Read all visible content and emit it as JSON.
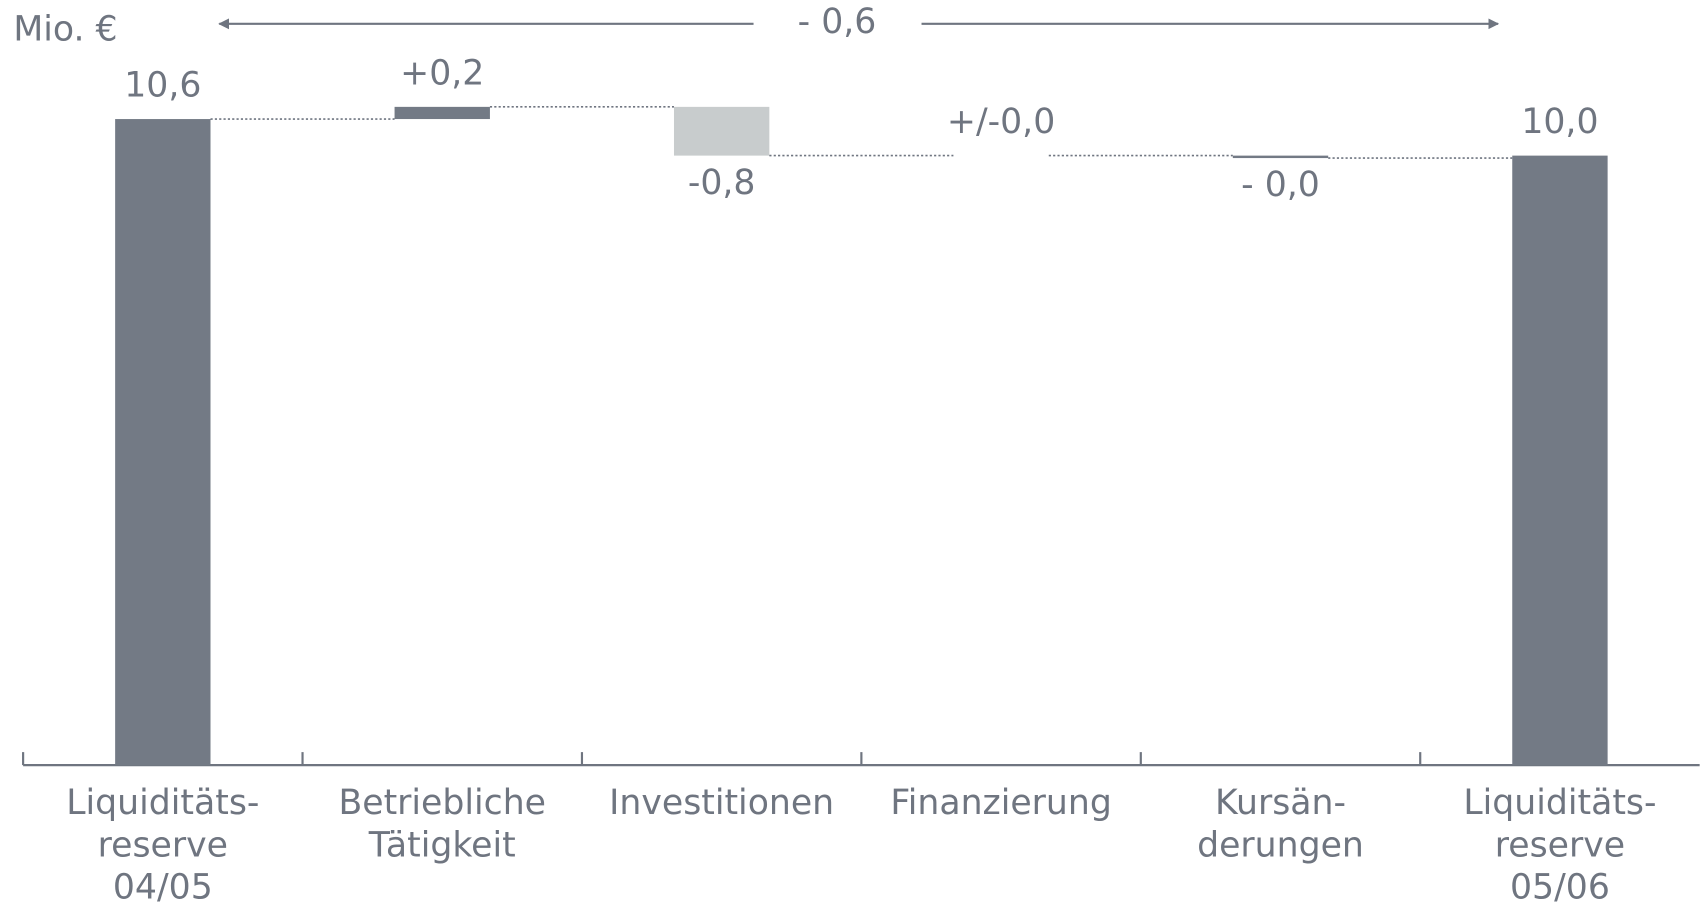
{
  "chart_data": {
    "type": "waterfall",
    "unit_label": "Mio. €",
    "annotation": "- 0,6",
    "categories": [
      [
        "Liquiditäts-",
        "reserve",
        "04/05"
      ],
      [
        "Betriebliche",
        "Tätigkeit"
      ],
      [
        "Investitionen"
      ],
      [
        "Finanzierung"
      ],
      [
        "Kursän-",
        "derungen"
      ],
      [
        "Liquiditäts-",
        "reserve",
        "05/06"
      ]
    ],
    "measures": [
      "total",
      "relative",
      "relative",
      "relative",
      "relative",
      "total"
    ],
    "values": [
      10.6,
      0.2,
      -0.8,
      0.0,
      -0.04,
      10.0
    ],
    "value_labels": [
      "10,6",
      "+0,2",
      "-0,8",
      "+/-0,0",
      "- 0,0",
      "10,0"
    ],
    "colors": [
      "#737a85",
      "#737a85",
      "#c8cccd",
      "#737a85",
      "#737a85",
      "#737a85"
    ],
    "ylim": [
      0,
      12.5
    ]
  }
}
